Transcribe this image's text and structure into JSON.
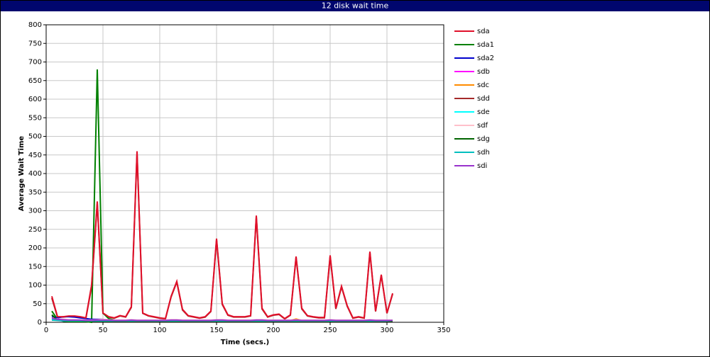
{
  "chart_data": {
    "type": "line",
    "title": "12 disk wait time",
    "x_label": "Time (secs.)",
    "y_label": "Average Wait Time",
    "x": [
      5,
      10,
      15,
      20,
      25,
      30,
      35,
      40,
      45,
      50,
      55,
      60,
      65,
      70,
      75,
      80,
      85,
      90,
      95,
      100,
      105,
      110,
      115,
      120,
      125,
      130,
      135,
      140,
      145,
      150,
      155,
      160,
      165,
      170,
      175,
      180,
      185,
      190,
      195,
      200,
      205,
      210,
      215,
      220,
      225,
      230,
      235,
      240,
      245,
      250,
      255,
      260,
      265,
      270,
      275,
      280,
      285,
      290,
      295,
      300,
      305
    ],
    "series": [
      {
        "name": "sdd",
        "color": "#a52a2a",
        "values": [
          65,
          14,
          14,
          16,
          16,
          14,
          11,
          95,
          320,
          24,
          14,
          11,
          17,
          14,
          40,
          455,
          24,
          17,
          14,
          11,
          9,
          68,
          108,
          33,
          17,
          14,
          11,
          14,
          29,
          222,
          48,
          19,
          14,
          14,
          14,
          17,
          283,
          36,
          14,
          19,
          21,
          9,
          19,
          174,
          36,
          17,
          14,
          12,
          12,
          177,
          36,
          95,
          43,
          11,
          14,
          11,
          187,
          29,
          126,
          24,
          76
        ]
      },
      {
        "name": "sda1",
        "color": "#008000",
        "values": [
          30,
          8,
          3,
          2,
          2,
          2,
          2,
          0,
          680,
          25,
          10,
          6,
          5,
          5,
          5,
          5,
          5,
          5,
          5,
          5,
          5,
          5,
          5,
          5,
          5,
          5,
          5,
          5,
          5,
          5,
          5,
          5,
          5,
          5,
          5,
          5,
          5,
          5,
          5,
          5,
          5,
          5,
          5,
          5,
          5,
          5,
          5,
          5,
          5,
          5,
          5,
          5,
          5,
          5,
          5,
          5,
          5,
          5,
          5,
          5,
          5
        ]
      },
      {
        "name": "sda2",
        "color": "#0000cd",
        "values": [
          15,
          12,
          15,
          15,
          14,
          12,
          10,
          8,
          8,
          8,
          6,
          5,
          5,
          5,
          5,
          5,
          5,
          5,
          5,
          5,
          5,
          5,
          5,
          5,
          5,
          5,
          5,
          5,
          5,
          5,
          5,
          5,
          5,
          5,
          5,
          5,
          5,
          5,
          5,
          5,
          5,
          5,
          5,
          5,
          5,
          5,
          5,
          5,
          5,
          5,
          5,
          5,
          5,
          5,
          5,
          5,
          5,
          5,
          5,
          5,
          5
        ]
      },
      {
        "name": "sdb",
        "color": "#ff00ff",
        "values": [
          10,
          8,
          7,
          6,
          6,
          5,
          5,
          5,
          6,
          7,
          6,
          5,
          5,
          5,
          6,
          5,
          5,
          5,
          5,
          5,
          5,
          6,
          6,
          5,
          5,
          5,
          5,
          5,
          5,
          6,
          6,
          5,
          5,
          5,
          5,
          5,
          6,
          6,
          5,
          5,
          5,
          5,
          5,
          6,
          5,
          5,
          5,
          5,
          5,
          6,
          5,
          5,
          5,
          5,
          5,
          5,
          6,
          5,
          5,
          5,
          5
        ]
      },
      {
        "name": "sdc",
        "color": "#ff8c00",
        "values": [
          8,
          6,
          5,
          5,
          5,
          5,
          5,
          5,
          6,
          6,
          5,
          5,
          5,
          5,
          5,
          5,
          5,
          5,
          5,
          5,
          5,
          5,
          5,
          5,
          5,
          5,
          5,
          5,
          5,
          5,
          5,
          5,
          5,
          5,
          5,
          5,
          5,
          5,
          5,
          5,
          5,
          5,
          5,
          9,
          5,
          5,
          5,
          5,
          5,
          5,
          5,
          5,
          5,
          5,
          5,
          5,
          5,
          5,
          5,
          5,
          5
        ]
      },
      {
        "name": "sde",
        "color": "#00ffff",
        "values": [
          9,
          7,
          6,
          5,
          5,
          5,
          5,
          5,
          5,
          5,
          5,
          5,
          5,
          5,
          5,
          5,
          5,
          5,
          5,
          5,
          5,
          5,
          5,
          5,
          5,
          5,
          5,
          5,
          5,
          5,
          5,
          5,
          5,
          5,
          5,
          5,
          5,
          5,
          5,
          5,
          5,
          5,
          5,
          5,
          5,
          5,
          5,
          5,
          5,
          5,
          5,
          5,
          5,
          5,
          5,
          5,
          5,
          5,
          5,
          5,
          5
        ]
      },
      {
        "name": "sdf",
        "color": "#ffc0cb",
        "values": [
          12,
          9,
          8,
          7,
          7,
          6,
          6,
          6,
          7,
          8,
          7,
          6,
          6,
          6,
          7,
          6,
          6,
          6,
          6,
          6,
          6,
          7,
          7,
          6,
          6,
          6,
          6,
          6,
          6,
          7,
          7,
          6,
          6,
          6,
          6,
          6,
          7,
          7,
          6,
          6,
          6,
          6,
          6,
          7,
          6,
          6,
          6,
          6,
          6,
          7,
          6,
          6,
          6,
          6,
          6,
          6,
          7,
          6,
          6,
          6,
          6
        ]
      },
      {
        "name": "sdg",
        "color": "#006400",
        "values": [
          20,
          6,
          4,
          3,
          3,
          3,
          3,
          3,
          3,
          3,
          3,
          3,
          3,
          3,
          3,
          3,
          3,
          3,
          3,
          3,
          3,
          3,
          3,
          3,
          3,
          3,
          3,
          3,
          3,
          3,
          3,
          3,
          3,
          3,
          3,
          3,
          3,
          3,
          3,
          3,
          3,
          3,
          3,
          3,
          3,
          3,
          3,
          3,
          3,
          3,
          3,
          3,
          3,
          3,
          3,
          3,
          3,
          3,
          3,
          3,
          3
        ]
      },
      {
        "name": "sdh",
        "color": "#00bfbf",
        "values": [
          6,
          5,
          4,
          4,
          4,
          4,
          4,
          4,
          4,
          4,
          4,
          4,
          4,
          4,
          4,
          4,
          4,
          4,
          4,
          4,
          4,
          4,
          4,
          4,
          4,
          4,
          4,
          4,
          4,
          4,
          4,
          4,
          4,
          4,
          4,
          4,
          4,
          4,
          4,
          4,
          4,
          4,
          4,
          4,
          4,
          4,
          4,
          4,
          4,
          4,
          4,
          4,
          4,
          4,
          4,
          4,
          4,
          4,
          4,
          4,
          5
        ]
      },
      {
        "name": "sdi",
        "color": "#9932cc",
        "values": [
          11,
          8,
          7,
          6,
          6,
          6,
          5,
          5,
          6,
          6,
          6,
          5,
          5,
          5,
          6,
          5,
          5,
          5,
          5,
          5,
          5,
          6,
          6,
          5,
          5,
          5,
          5,
          5,
          5,
          6,
          6,
          5,
          5,
          5,
          5,
          5,
          6,
          6,
          5,
          5,
          5,
          5,
          5,
          6,
          5,
          5,
          5,
          5,
          5,
          6,
          5,
          5,
          5,
          5,
          5,
          5,
          6,
          5,
          5,
          5,
          5
        ]
      },
      {
        "name": "sda",
        "color": "#e0102a",
        "values": [
          70,
          15,
          15,
          17,
          17,
          15,
          12,
          100,
          325,
          25,
          15,
          12,
          18,
          15,
          42,
          460,
          25,
          18,
          15,
          12,
          10,
          70,
          110,
          35,
          18,
          15,
          12,
          15,
          30,
          225,
          50,
          20,
          15,
          15,
          15,
          18,
          287,
          38,
          15,
          20,
          22,
          10,
          20,
          177,
          38,
          18,
          15,
          13,
          13,
          180,
          38,
          97,
          45,
          12,
          15,
          12,
          190,
          30,
          128,
          25,
          78
        ]
      }
    ],
    "legend_order": [
      10,
      1,
      2,
      3,
      4,
      0,
      5,
      6,
      7,
      8,
      9
    ],
    "xlim": [
      0,
      350
    ],
    "xticks": [
      0,
      50,
      100,
      150,
      200,
      250,
      300,
      350
    ],
    "ylim": [
      0,
      800
    ],
    "yticks": [
      0,
      50,
      100,
      150,
      200,
      250,
      300,
      350,
      400,
      450,
      500,
      550,
      600,
      650,
      700,
      750,
      800
    ],
    "grid": true
  }
}
